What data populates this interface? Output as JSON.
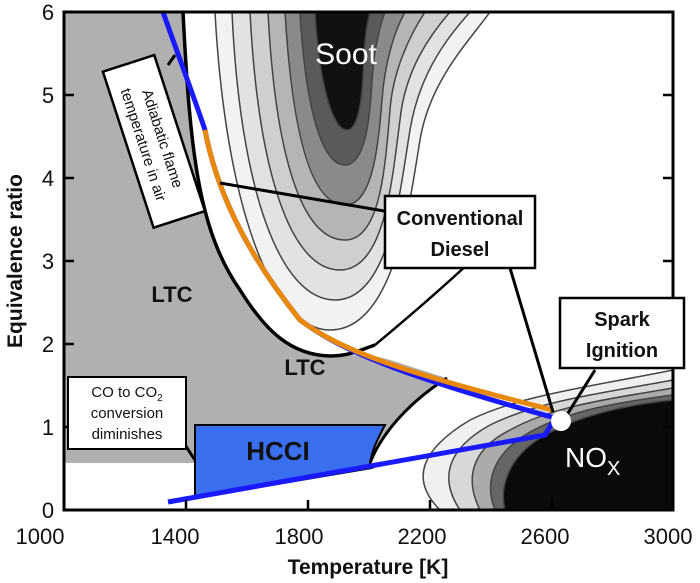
{
  "axes": {
    "xlabel": "Temperature [K]",
    "ylabel": "Equivalence ratio",
    "xticks": [
      "1000",
      "1400",
      "1800",
      "2200",
      "2600",
      "3000"
    ],
    "yticks": [
      "0",
      "1",
      "2",
      "3",
      "4",
      "5",
      "6"
    ]
  },
  "regions": {
    "soot": "Soot",
    "ltc_upper": "LTC",
    "ltc_lower": "LTC",
    "hcci": "HCCI",
    "nox_main": "NO",
    "nox_sub": "X"
  },
  "callouts": {
    "adiabatic_line1": "Adiabatic flame",
    "adiabatic_line2": "temperature in air",
    "diesel_line1": "Conventional",
    "diesel_line2": "Diesel",
    "spark_line1": "Spark",
    "spark_line2": "Ignition",
    "co_line1": "CO to CO",
    "co_sub": "2",
    "co_line2": "conversion",
    "co_line3": "diminishes"
  },
  "colors": {
    "ltc_gray": "#b0b0b0",
    "hcci_blue": "#3a6ff0",
    "adiabatic_blue": "#1a1aff",
    "diesel_orange": "#e8890c"
  }
}
